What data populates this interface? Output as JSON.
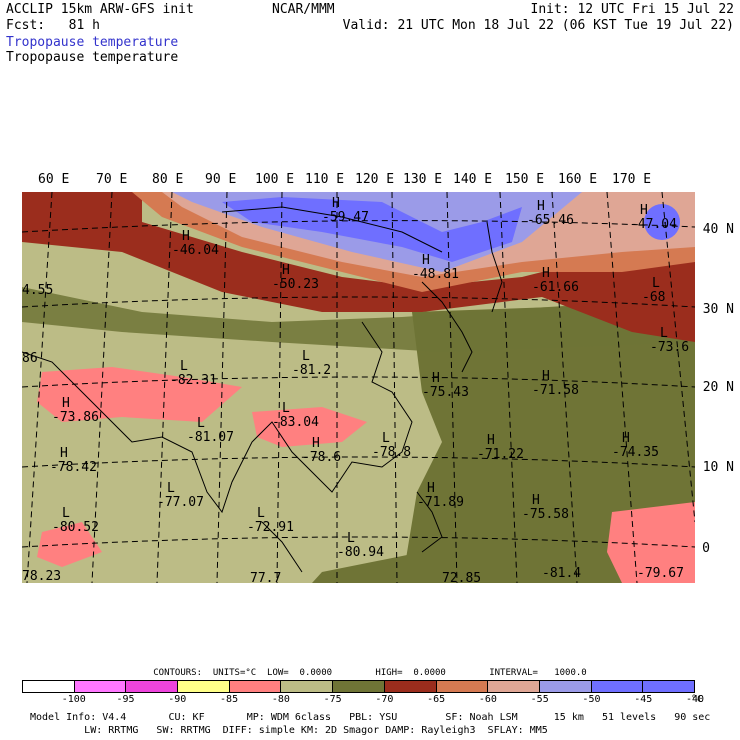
{
  "header": {
    "model": "ACCLIP 15km ARW-GFS init",
    "org": "NCAR/MMM",
    "init": "Init: 12 UTC Fri 15 Jul 22",
    "fcst": "Fcst:   81 h",
    "valid": "Valid: 21 UTC Mon 18 Jul 22 (06 KST Tue 19 Jul 22)",
    "field_colored": "Tropopause temperature",
    "field_plain": "Tropopause temperature",
    "field_colored_color": "#3333cc"
  },
  "lon_labels": [
    "60 E",
    "70 E",
    "80 E",
    "90 E",
    "100 E",
    "110 E",
    "120 E",
    "130 E",
    "140 E",
    "150 E",
    "160 E",
    "170 E"
  ],
  "lat_labels": [
    "40 N",
    "30 N",
    "20 N",
    "10 N",
    "0"
  ],
  "map_labels": [
    {
      "text": "H",
      "value": "-59.47"
    },
    {
      "text": "H",
      "value": "-65.46"
    },
    {
      "text": "H",
      "value": "-47.04"
    },
    {
      "text": "H",
      "value": "-46.04"
    },
    {
      "text": "H",
      "value": "-50.23"
    },
    {
      "text": "H",
      "value": "-48.81"
    },
    {
      "text": "H",
      "value": "-61.66"
    },
    {
      "text": "",
      "value": "4.55"
    },
    {
      "text": "L",
      "value": "-68"
    },
    {
      "text": "L",
      "value": "-73.6"
    },
    {
      "text": "",
      "value": "86"
    },
    {
      "text": "L",
      "value": "-82.31"
    },
    {
      "text": "L",
      "value": "-81.2"
    },
    {
      "text": "H",
      "value": "-75.43"
    },
    {
      "text": "H",
      "value": "-71.58"
    },
    {
      "text": "H",
      "value": "-73.86"
    },
    {
      "text": "L",
      "value": "-83.04"
    },
    {
      "text": "L",
      "value": "-81.07"
    },
    {
      "text": "H",
      "value": "-78.42"
    },
    {
      "text": "H",
      "value": "-78.6"
    },
    {
      "text": "L",
      "value": "-78.8"
    },
    {
      "text": "H",
      "value": "-71.22"
    },
    {
      "text": "H",
      "value": "-74.35"
    },
    {
      "text": "L",
      "value": "-77.07"
    },
    {
      "text": "H",
      "value": "-71.89"
    },
    {
      "text": "H",
      "value": "-75.58"
    },
    {
      "text": "L",
      "value": "-80.52"
    },
    {
      "text": "L",
      "value": "-72.91"
    },
    {
      "text": "L",
      "value": "-80.94"
    },
    {
      "text": "",
      "value": "78.23"
    },
    {
      "text": "",
      "value": "-79.67"
    },
    {
      "text": "",
      "value": "-81.4"
    },
    {
      "text": "",
      "value": "72.85"
    },
    {
      "text": "",
      "value": "77.7"
    }
  ],
  "contours_line": "CONTOURS:  UNITS=°C  LOW=  0.0000        HIGH=  0.0000        INTERVAL=   1000.0",
  "colorbar": {
    "colors": [
      "#ffffff",
      "#ff77ff",
      "#ee44dd",
      "#ffff88",
      "#ff8080",
      "#bcbc86",
      "#6f7436",
      "#9b2d1d",
      "#d57a52",
      "#dfa695",
      "#9b9be8",
      "#6f6fff",
      "#6f6fff"
    ],
    "ticks": [
      "-100",
      "-95",
      "-90",
      "-85",
      "-80",
      "-75",
      "-70",
      "-65",
      "-60",
      "-55",
      "-50",
      "-45",
      "-40",
      "°C"
    ]
  },
  "footer": {
    "line1": "Model Info: V4.4       CU: KF       MP: WDM 6class   PBL: YSU        SF: Noah LSM      15 km   51 levels   90 sec",
    "line2": "         LW: RRTMG   SW: RRTMG  DIFF: simple KM: 2D Smagor DAMP: Rayleigh3  SFLAY: MM5"
  },
  "palette": {
    "olive_light": "#bcbc86",
    "olive_dark": "#6f7436",
    "dark_red": "#9b2d1d",
    "orange": "#d57a52",
    "salmon": "#dfa695",
    "lavender": "#9b9be8",
    "blue": "#6f6fff",
    "pink": "#ff8080"
  }
}
